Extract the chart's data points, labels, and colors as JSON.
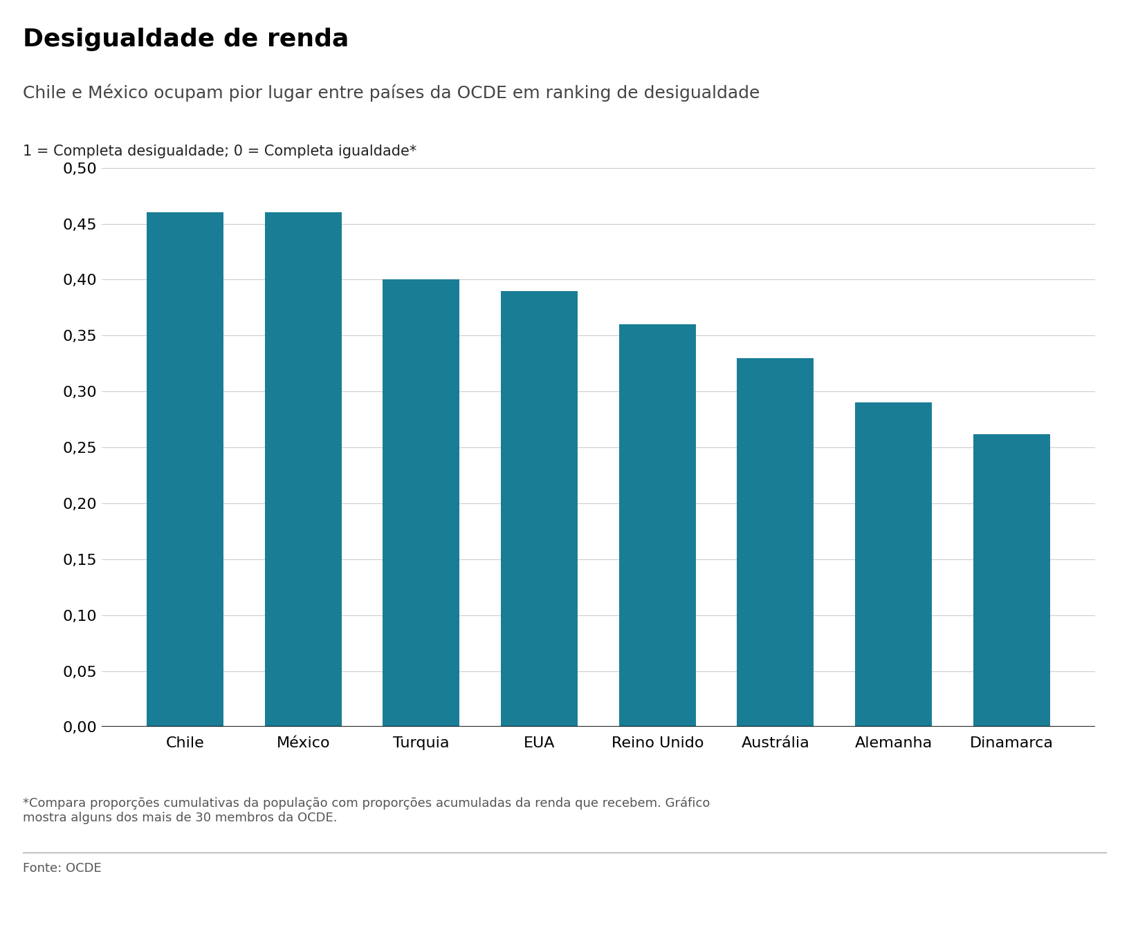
{
  "title": "Desigualdade de renda",
  "subtitle": "Chile e México ocupam pior lugar entre países da OCDE em ranking de desigualdade",
  "ylabel_note": "1 = Completa desigualdade; 0 = Completa igualdade*",
  "categories": [
    "Chile",
    "México",
    "Turquia",
    "EUA",
    "Reino Unido",
    "Austrália",
    "Alemanha",
    "Dinamarca"
  ],
  "values": [
    0.46,
    0.46,
    0.4,
    0.39,
    0.36,
    0.33,
    0.29,
    0.262
  ],
  "bar_color": "#1a7d96",
  "ylim": [
    0,
    0.5
  ],
  "yticks": [
    0.0,
    0.05,
    0.1,
    0.15,
    0.2,
    0.25,
    0.3,
    0.35,
    0.4,
    0.45,
    0.5
  ],
  "footnote": "*Compara proporções cumulativas da população com proporções acumuladas da renda que recebem. Gráfico\nmostra alguns dos mais de 30 membros da OCDE.",
  "source": "Fonte: OCDE",
  "background_color": "#ffffff",
  "grid_color": "#cccccc",
  "title_fontsize": 26,
  "subtitle_fontsize": 18,
  "tick_fontsize": 16,
  "label_fontsize": 16,
  "note_fontsize": 15,
  "footnote_fontsize": 13,
  "source_fontsize": 13
}
